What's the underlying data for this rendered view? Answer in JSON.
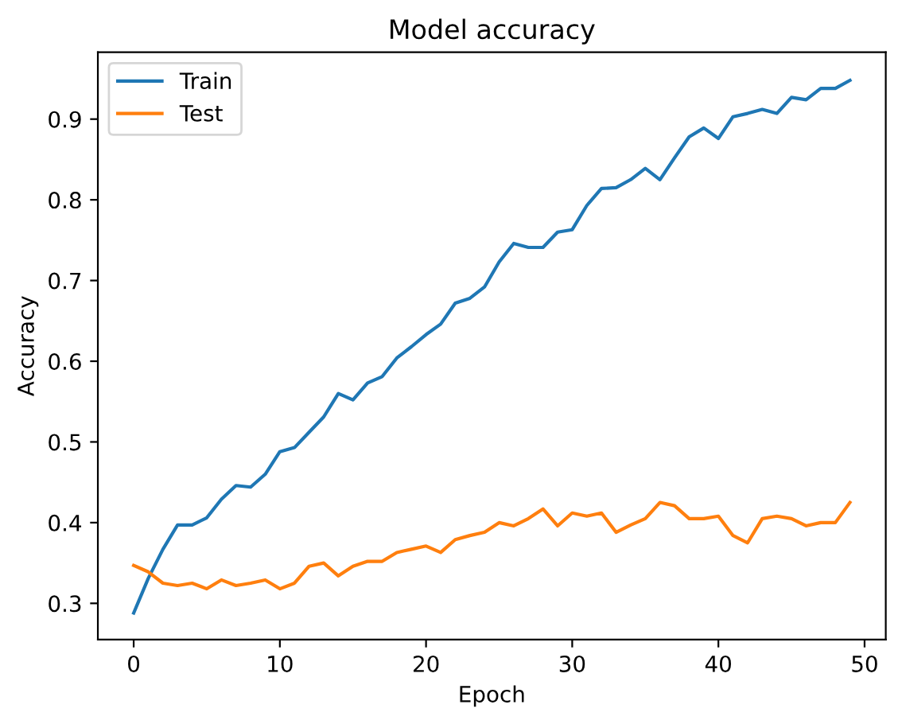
{
  "chart_data": {
    "type": "line",
    "title": "Model accuracy",
    "xlabel": "Epoch",
    "ylabel": "Accuracy",
    "x": [
      0,
      1,
      2,
      3,
      4,
      5,
      6,
      7,
      8,
      9,
      10,
      11,
      12,
      13,
      14,
      15,
      16,
      17,
      18,
      19,
      20,
      21,
      22,
      23,
      24,
      25,
      26,
      27,
      28,
      29,
      30,
      31,
      32,
      33,
      34,
      35,
      36,
      37,
      38,
      39,
      40,
      41,
      42,
      43,
      44,
      45,
      46,
      47,
      48,
      49
    ],
    "series": [
      {
        "name": "Train",
        "color": "#1f77b4",
        "values": [
          0.288,
          0.331,
          0.367,
          0.397,
          0.397,
          0.406,
          0.429,
          0.446,
          0.444,
          0.46,
          0.488,
          0.493,
          0.512,
          0.531,
          0.56,
          0.552,
          0.573,
          0.581,
          0.604,
          0.618,
          0.633,
          0.646,
          0.672,
          0.678,
          0.692,
          0.723,
          0.746,
          0.741,
          0.741,
          0.76,
          0.763,
          0.793,
          0.814,
          0.815,
          0.825,
          0.839,
          0.825,
          0.852,
          0.878,
          0.889,
          0.876,
          0.903,
          0.907,
          0.912,
          0.907,
          0.927,
          0.924,
          0.938,
          0.938,
          0.948
        ]
      },
      {
        "name": "Test",
        "color": "#ff7f0e",
        "values": [
          0.347,
          0.339,
          0.325,
          0.322,
          0.325,
          0.318,
          0.329,
          0.322,
          0.325,
          0.329,
          0.318,
          0.325,
          0.346,
          0.35,
          0.334,
          0.346,
          0.352,
          0.352,
          0.363,
          0.367,
          0.371,
          0.363,
          0.379,
          0.384,
          0.388,
          0.4,
          0.396,
          0.405,
          0.417,
          0.396,
          0.412,
          0.408,
          0.412,
          0.388,
          0.397,
          0.405,
          0.425,
          0.421,
          0.405,
          0.405,
          0.408,
          0.384,
          0.375,
          0.405,
          0.408,
          0.405,
          0.396,
          0.4,
          0.4,
          0.425
        ]
      }
    ],
    "xlim": [
      -2.45,
      51.45
    ],
    "ylim": [
      0.255,
      0.983
    ],
    "xticks": [
      0,
      10,
      20,
      30,
      40,
      50
    ],
    "yticks": [
      0.3,
      0.4,
      0.5,
      0.6,
      0.7,
      0.8,
      0.9
    ],
    "grid": false,
    "legend": "top left"
  }
}
